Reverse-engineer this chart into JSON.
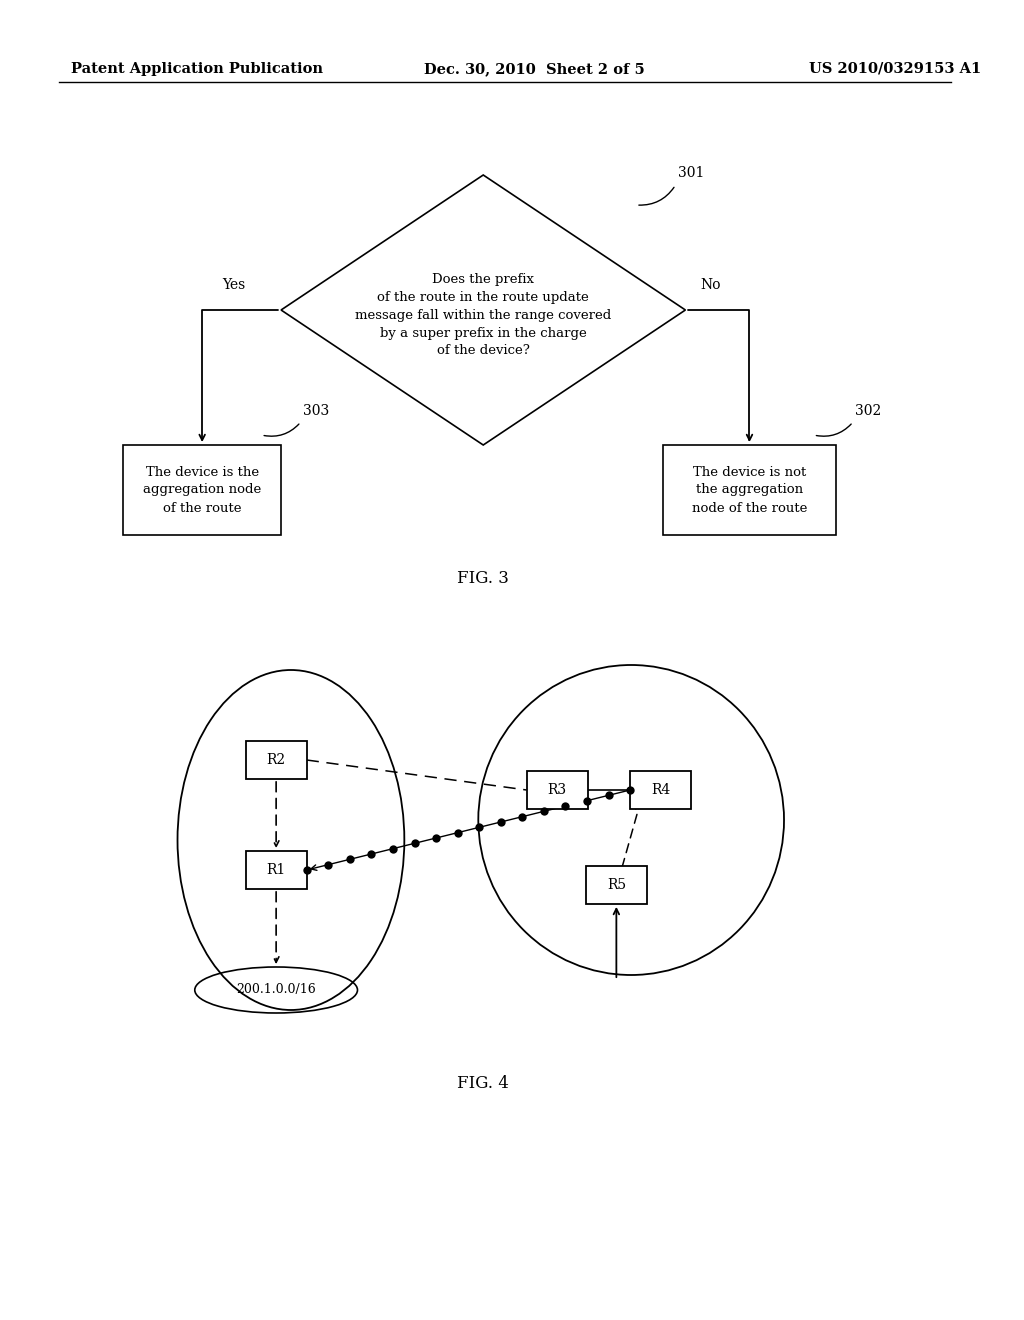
{
  "background_color": "#ffffff",
  "header_left": "Patent Application Publication",
  "header_center": "Dec. 30, 2010  Sheet 2 of 5",
  "header_right": "US 2010/0329153 A1",
  "header_fontsize": 10.5,
  "fig3_label": "FIG. 3",
  "fig4_label": "FIG. 4",
  "diamond_text": "Does the prefix\nof the route in the route update\nmessage fall within the range covered\nby a super prefix in the charge\nof the device?",
  "diamond_label": "301",
  "yes_label": "Yes",
  "no_label": "No",
  "box303_text": "The device is the\naggregation node\nof the route",
  "box303_label": "303",
  "box302_text": "The device is not\nthe aggregation\nnode of the route",
  "box302_label": "302",
  "prefix_text": "200.1.0.0/16"
}
